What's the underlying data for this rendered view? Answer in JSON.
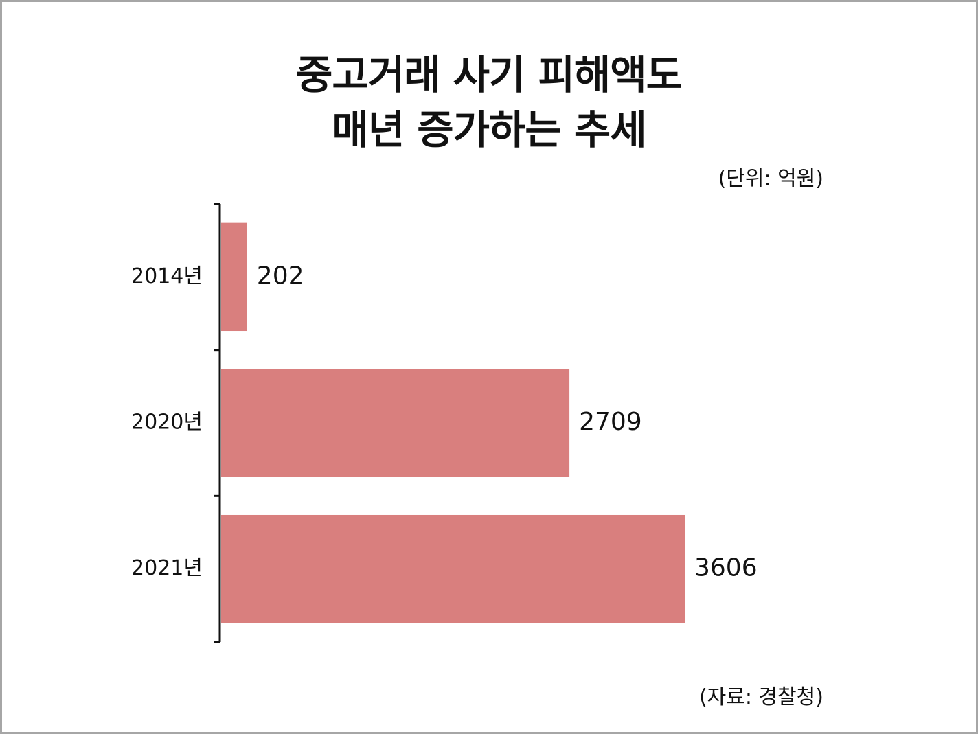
{
  "title_lines": [
    "중고거래 사기 피해액도",
    "매년 증가하는 추세"
  ],
  "unit": "(단위: 억원)",
  "source": "(자료: 경찰청)",
  "colors": {
    "bar": "#d97f7e",
    "axis": "#111111",
    "border": "#a6a6a6"
  },
  "chart_data": {
    "type": "bar",
    "orientation": "horizontal",
    "title": "중고거래 사기 피해액도 매년 증가하는 추세",
    "categories": [
      "2014년",
      "2020년",
      "2021년"
    ],
    "values": [
      202,
      2709,
      3606
    ],
    "unit": "억원",
    "xlim": [
      0,
      3606
    ],
    "grid": false,
    "legend": "none"
  }
}
